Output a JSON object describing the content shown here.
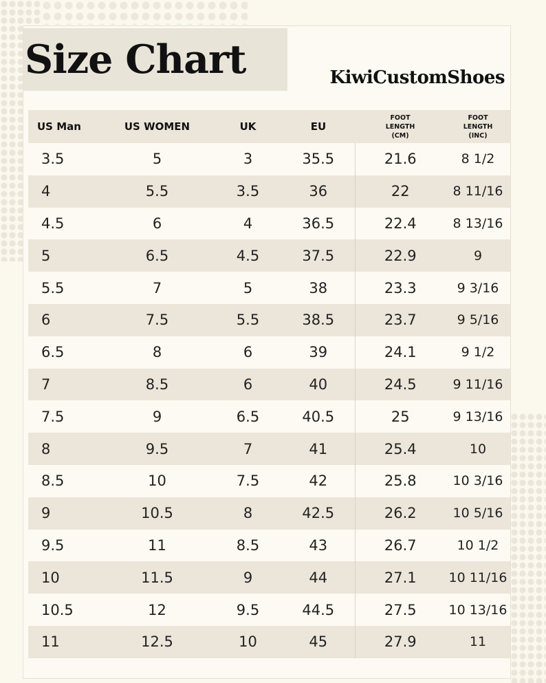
{
  "title": "Size Chart",
  "brand": "KiwiCustomShoes",
  "columns": [
    "US Man",
    "US WOMEN",
    "UK",
    "EU",
    "FOOT\nLENGTH\n(CM)",
    "FOOT\nLENGTH\n(INC)"
  ],
  "rows": [
    [
      "3.5",
      "5",
      "3",
      "35.5",
      "21.6",
      "8 1/2"
    ],
    [
      "4",
      "5.5",
      "3.5",
      "36",
      "22",
      "8 11/16"
    ],
    [
      "4.5",
      "6",
      "4",
      "36.5",
      "22.4",
      "8 13/16"
    ],
    [
      "5",
      "6.5",
      "4.5",
      "37.5",
      "22.9",
      "9"
    ],
    [
      "5.5",
      "7",
      "5",
      "38",
      "23.3",
      "9 3/16"
    ],
    [
      "6",
      "7.5",
      "5.5",
      "38.5",
      "23.7",
      "9 5/16"
    ],
    [
      "6.5",
      "8",
      "6",
      "39",
      "24.1",
      "9 1/2"
    ],
    [
      "7",
      "8.5",
      "6",
      "40",
      "24.5",
      "9 11/16"
    ],
    [
      "7.5",
      "9",
      "6.5",
      "40.5",
      "25",
      "9 13/16"
    ],
    [
      "8",
      "9.5",
      "7",
      "41",
      "25.4",
      "10"
    ],
    [
      "8.5",
      "10",
      "7.5",
      "42",
      "25.8",
      "10 3/16"
    ],
    [
      "9",
      "10.5",
      "8",
      "42.5",
      "26.2",
      "10 5/16"
    ],
    [
      "9.5",
      "11",
      "8.5",
      "43",
      "26.7",
      "10 1/2"
    ],
    [
      "10",
      "11.5",
      "9",
      "44",
      "27.1",
      "10 11/16"
    ],
    [
      "10.5",
      "12",
      "9.5",
      "44.5",
      "27.5",
      "10 13/16"
    ],
    [
      "11",
      "12.5",
      "10",
      "45",
      "27.9",
      "11"
    ]
  ],
  "colors": {
    "background": "#fbf8ee",
    "band": "#ebe6d9",
    "title_box": "#e8e4d7",
    "text": "#1a1a1a"
  }
}
